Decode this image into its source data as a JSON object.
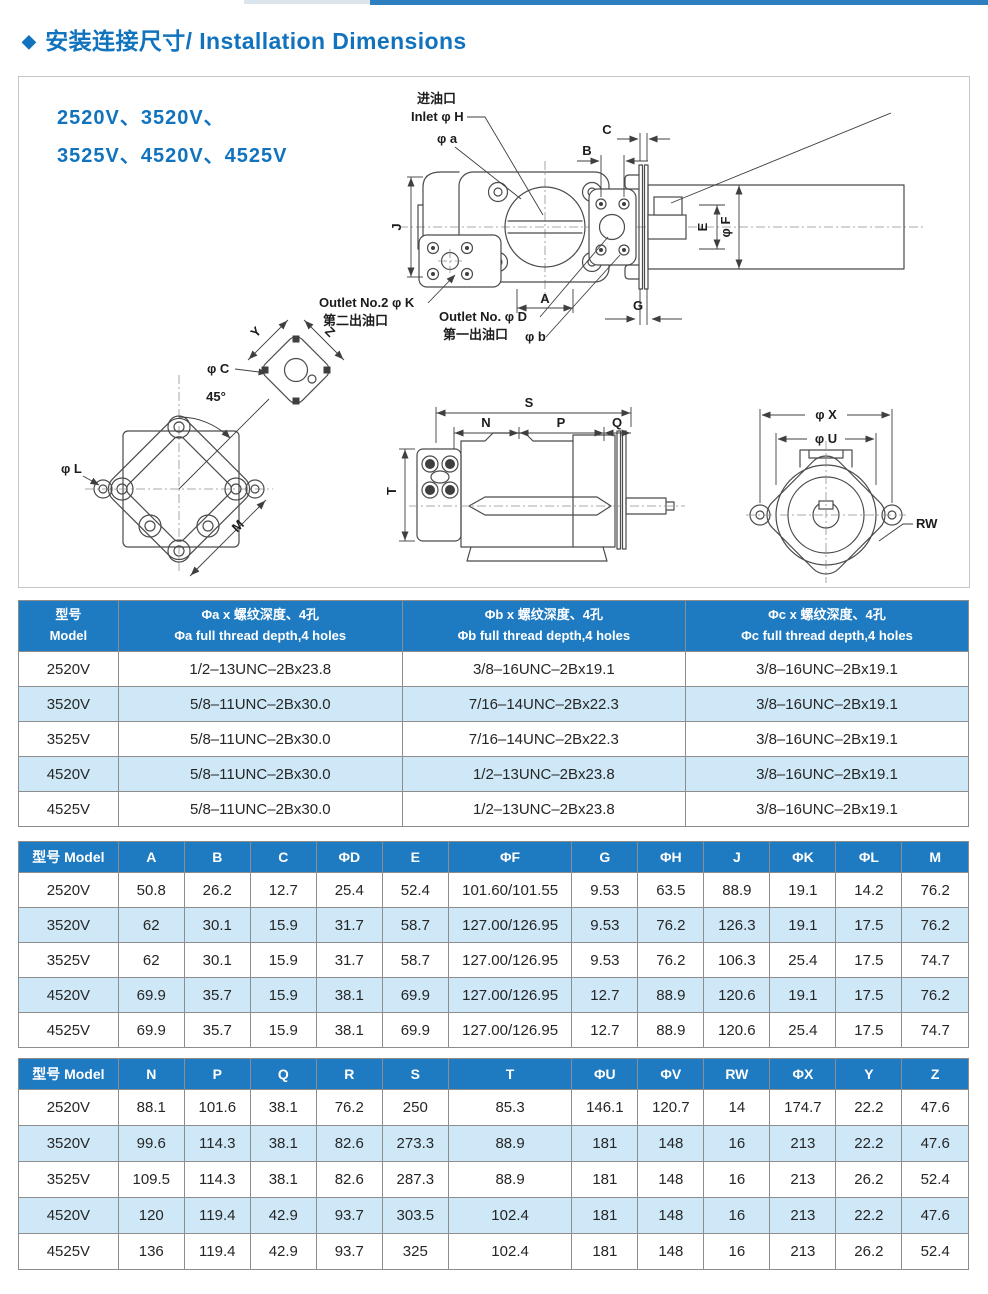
{
  "header": {
    "bullet": "◆",
    "title": "安装连接尺寸/ Installation Dimensions"
  },
  "colors": {
    "accent": "#1173bd",
    "table_header": "#1e7ac1",
    "row_alt": "#cfe8f7"
  },
  "diagram": {
    "models": [
      "2520V、3520V、",
      "3525V、4520V、4525V"
    ],
    "front": {
      "inlet_zh": "进油口",
      "inlet_en": "Inlet φ H",
      "phi_a": "φ a",
      "dim_c": "C",
      "dim_b": "B",
      "dim_j": "J",
      "dim_a": "A",
      "dim_g": "G",
      "dim_e": "E",
      "phi_f": "φ F",
      "outlet2_en": "Outlet No.2 φ K",
      "outlet2_zh": "第二出油口",
      "outlet1_en": "Outlet No. φ D",
      "outlet1_zh": "第一出油口",
      "phi_b": "φ b"
    },
    "flange45": {
      "phi_c": "φ C",
      "dim_y": "Y",
      "dim_z": "Z",
      "angle": "45°",
      "phi_l": "φ L",
      "dim_m": "M"
    },
    "side": {
      "dim_s": "S",
      "dim_n": "N",
      "dim_p": "P",
      "dim_q": "Q",
      "dim_t": "T"
    },
    "end": {
      "phi_x": "φ X",
      "phi_u": "φ U",
      "rw": "RW"
    }
  },
  "tables": [
    {
      "model_header_lines": [
        "型号",
        "Model"
      ],
      "columns": [
        {
          "zh": "Φa x 螺纹深度、4孔",
          "en": "Φa full thread depth,4 holes"
        },
        {
          "zh": "Φb x 螺纹深度、4孔",
          "en": "Φb full thread depth,4 holes"
        },
        {
          "zh": "Φc x 螺纹深度、4孔",
          "en": "Φc full thread depth,4 holes"
        }
      ],
      "rows": [
        {
          "model": "2520V",
          "values": [
            "1/2–13UNC–2Bx23.8",
            "3/8–16UNC–2Bx19.1",
            "3/8–16UNC–2Bx19.1"
          ]
        },
        {
          "model": "3520V",
          "values": [
            "5/8–11UNC–2Bx30.0",
            "7/16–14UNC–2Bx22.3",
            "3/8–16UNC–2Bx19.1"
          ]
        },
        {
          "model": "3525V",
          "values": [
            "5/8–11UNC–2Bx30.0",
            "7/16–14UNC–2Bx22.3",
            "3/8–16UNC–2Bx19.1"
          ]
        },
        {
          "model": "4520V",
          "values": [
            "5/8–11UNC–2Bx30.0",
            "1/2–13UNC–2Bx23.8",
            "3/8–16UNC–2Bx19.1"
          ]
        },
        {
          "model": "4525V",
          "values": [
            "5/8–11UNC–2Bx30.0",
            "1/2–13UNC–2Bx23.8",
            "3/8–16UNC–2Bx19.1"
          ]
        }
      ]
    },
    {
      "model_header": "型号 Model",
      "columns": [
        "A",
        "B",
        "C",
        "ΦD",
        "E",
        "ΦF",
        "G",
        "ΦH",
        "J",
        "ΦK",
        "ΦL",
        "M"
      ],
      "rows": [
        {
          "model": "2520V",
          "values": [
            "50.8",
            "26.2",
            "12.7",
            "25.4",
            "52.4",
            "101.60/101.55",
            "9.53",
            "63.5",
            "88.9",
            "19.1",
            "14.2",
            "76.2"
          ]
        },
        {
          "model": "3520V",
          "values": [
            "62",
            "30.1",
            "15.9",
            "31.7",
            "58.7",
            "127.00/126.95",
            "9.53",
            "76.2",
            "126.3",
            "19.1",
            "17.5",
            "76.2"
          ]
        },
        {
          "model": "3525V",
          "values": [
            "62",
            "30.1",
            "15.9",
            "31.7",
            "58.7",
            "127.00/126.95",
            "9.53",
            "76.2",
            "106.3",
            "25.4",
            "17.5",
            "74.7"
          ]
        },
        {
          "model": "4520V",
          "values": [
            "69.9",
            "35.7",
            "15.9",
            "38.1",
            "69.9",
            "127.00/126.95",
            "12.7",
            "88.9",
            "120.6",
            "19.1",
            "17.5",
            "76.2"
          ]
        },
        {
          "model": "4525V",
          "values": [
            "69.9",
            "35.7",
            "15.9",
            "38.1",
            "69.9",
            "127.00/126.95",
            "12.7",
            "88.9",
            "120.6",
            "25.4",
            "17.5",
            "74.7"
          ]
        }
      ]
    },
    {
      "model_header": "型号 Model",
      "columns": [
        "N",
        "P",
        "Q",
        "R",
        "S",
        "T",
        "ΦU",
        "ΦV",
        "RW",
        "ΦX",
        "Y",
        "Z"
      ],
      "rows": [
        {
          "model": "2520V",
          "values": [
            "88.1",
            "101.6",
            "38.1",
            "76.2",
            "250",
            "85.3",
            "146.1",
            "120.7",
            "14",
            "174.7",
            "22.2",
            "47.6"
          ]
        },
        {
          "model": "3520V",
          "values": [
            "99.6",
            "114.3",
            "38.1",
            "82.6",
            "273.3",
            "88.9",
            "181",
            "148",
            "16",
            "213",
            "22.2",
            "47.6"
          ]
        },
        {
          "model": "3525V",
          "values": [
            "109.5",
            "114.3",
            "38.1",
            "82.6",
            "287.3",
            "88.9",
            "181",
            "148",
            "16",
            "213",
            "26.2",
            "52.4"
          ]
        },
        {
          "model": "4520V",
          "values": [
            "120",
            "119.4",
            "42.9",
            "93.7",
            "303.5",
            "102.4",
            "181",
            "148",
            "16",
            "213",
            "22.2",
            "47.6"
          ]
        },
        {
          "model": "4525V",
          "values": [
            "136",
            "119.4",
            "42.9",
            "93.7",
            "325",
            "102.4",
            "181",
            "148",
            "16",
            "213",
            "26.2",
            "52.4"
          ]
        }
      ]
    }
  ]
}
